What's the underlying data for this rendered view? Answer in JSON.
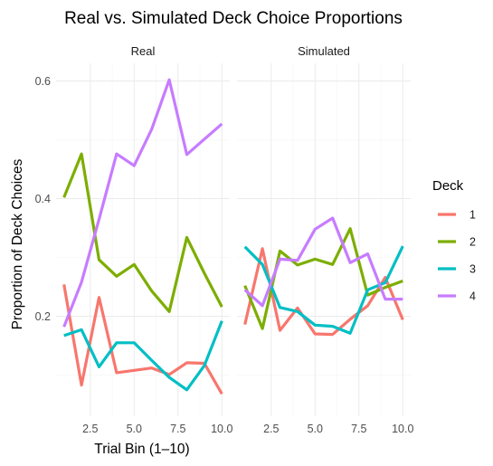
{
  "chart_data": {
    "type": "line",
    "title": "Real vs. Simulated Deck Choice Proportions",
    "xlabel": "Trial Bin (1–10)",
    "ylabel": "Proportion of Deck Choices",
    "xlim": [
      0.55,
      10.45
    ],
    "ylim": [
      0.03,
      0.63
    ],
    "x_ticks": [
      2.5,
      5.0,
      7.5,
      10.0
    ],
    "x_tick_labels": [
      "2.5",
      "5.0",
      "7.5",
      "10.0"
    ],
    "y_ticks": [
      0.2,
      0.4,
      0.6
    ],
    "y_tick_labels": [
      "0.2",
      "0.4",
      "0.6"
    ],
    "grid": true,
    "legend": {
      "title": "Deck",
      "placement": "right",
      "entries": [
        {
          "label": "1",
          "color": "#F8766D"
        },
        {
          "label": "2",
          "color": "#7CAE00"
        },
        {
          "label": "3",
          "color": "#00BFC4"
        },
        {
          "label": "4",
          "color": "#C77CFF"
        }
      ]
    },
    "panels": [
      {
        "name": "Real",
        "x": [
          1,
          2,
          3,
          4,
          5,
          6,
          7,
          8,
          9,
          10
        ],
        "series": [
          {
            "name": "1",
            "color": "#F8766D",
            "values": [
              0.254,
              0.083,
              0.232,
              0.104,
              0.108,
              0.112,
              0.101,
              0.121,
              0.12,
              0.068
            ]
          },
          {
            "name": "2",
            "color": "#7CAE00",
            "values": [
              0.402,
              0.476,
              0.296,
              0.268,
              0.288,
              0.243,
              0.208,
              0.334,
              0.273,
              0.216
            ]
          },
          {
            "name": "3",
            "color": "#00BFC4",
            "values": [
              0.167,
              0.177,
              0.114,
              0.155,
              0.155,
              0.125,
              0.096,
              0.075,
              0.116,
              0.192
            ]
          },
          {
            "name": "4",
            "color": "#C77CFF",
            "values": [
              0.182,
              0.258,
              0.365,
              0.476,
              0.456,
              0.518,
              0.602,
              0.475,
              0.501,
              0.527
            ]
          }
        ]
      },
      {
        "name": "Simulated",
        "x": [
          1,
          2,
          3,
          4,
          5,
          6,
          7,
          8,
          9,
          10
        ],
        "series": [
          {
            "name": "1",
            "color": "#F8766D",
            "values": [
              0.186,
              0.315,
              0.176,
              0.214,
              0.17,
              0.169,
              0.195,
              0.218,
              0.266,
              0.194
            ]
          },
          {
            "name": "2",
            "color": "#7CAE00",
            "values": [
              0.252,
              0.179,
              0.311,
              0.287,
              0.297,
              0.288,
              0.349,
              0.236,
              0.249,
              0.26
            ]
          },
          {
            "name": "3",
            "color": "#00BFC4",
            "values": [
              0.318,
              0.288,
              0.215,
              0.208,
              0.185,
              0.183,
              0.171,
              0.245,
              0.257,
              0.319
            ]
          },
          {
            "name": "4",
            "color": "#C77CFF",
            "values": [
              0.245,
              0.218,
              0.297,
              0.295,
              0.348,
              0.367,
              0.291,
              0.306,
              0.229,
              0.229
            ]
          }
        ]
      }
    ]
  }
}
